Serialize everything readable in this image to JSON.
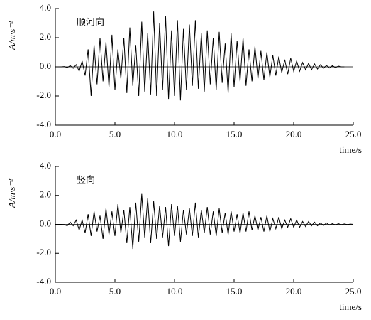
{
  "chart_data": [
    {
      "type": "line",
      "annotation": "顺河向",
      "y_label": "A/m·s⁻²",
      "x_label": "time/s",
      "color": "#000000",
      "xlim": [
        0,
        25
      ],
      "ylim": [
        -4,
        4
      ],
      "xticks": [
        {
          "value": 0,
          "label": "0.0"
        },
        {
          "value": 5,
          "label": "5.0"
        },
        {
          "value": 10,
          "label": "10.0"
        },
        {
          "value": 15,
          "label": "15.0"
        },
        {
          "value": 20,
          "label": "20.0"
        },
        {
          "value": 25,
          "label": "25.0"
        }
      ],
      "yticks": [
        {
          "value": 4,
          "label": "4.0"
        },
        {
          "value": 2,
          "label": "2.0"
        },
        {
          "value": 0,
          "label": "0.0"
        },
        {
          "value": -2,
          "label": "-2.0"
        },
        {
          "value": -4,
          "label": "-4.0"
        }
      ],
      "x": [
        0,
        0.25,
        0.5,
        0.75,
        1,
        1.25,
        1.5,
        1.75,
        2,
        2.25,
        2.5,
        2.75,
        3,
        3.25,
        3.5,
        3.75,
        4,
        4.25,
        4.5,
        4.75,
        5,
        5.25,
        5.5,
        5.75,
        6,
        6.25,
        6.5,
        6.75,
        7,
        7.25,
        7.5,
        7.75,
        8,
        8.25,
        8.5,
        8.75,
        9,
        9.25,
        9.5,
        9.75,
        10,
        10.25,
        10.5,
        10.75,
        11,
        11.25,
        11.5,
        11.75,
        12,
        12.25,
        12.5,
        12.75,
        13,
        13.25,
        13.5,
        13.75,
        14,
        14.25,
        14.5,
        14.75,
        15,
        15.25,
        15.5,
        15.75,
        16,
        16.25,
        16.5,
        16.75,
        17,
        17.25,
        17.5,
        17.75,
        18,
        18.25,
        18.5,
        18.75,
        19,
        19.25,
        19.5,
        19.75,
        20,
        20.25,
        20.5,
        20.75,
        21,
        21.25,
        21.5,
        21.75,
        22,
        22.25,
        22.5,
        22.75,
        23,
        23.25,
        23.5,
        23.75,
        24,
        24.25
      ],
      "values": [
        0,
        0,
        0,
        0.02,
        -0.05,
        0.08,
        -0.1,
        0.15,
        -0.3,
        0.4,
        -0.6,
        1.2,
        -2.0,
        1.5,
        -1.2,
        2.0,
        -1.0,
        1.7,
        -1.4,
        2.2,
        -1.6,
        1.2,
        -0.8,
        2.0,
        -1.8,
        2.7,
        -1.3,
        1.5,
        -2.0,
        3.1,
        -1.7,
        2.3,
        -1.9,
        3.8,
        -2.0,
        3.0,
        -1.6,
        3.5,
        -2.2,
        2.5,
        -2.0,
        3.2,
        -2.3,
        2.6,
        -1.6,
        2.9,
        -1.3,
        3.2,
        -1.5,
        2.3,
        -1.7,
        2.5,
        -1.2,
        2.0,
        -1.6,
        2.4,
        -1.1,
        1.6,
        -1.8,
        2.3,
        -1.4,
        1.8,
        -1.0,
        2.0,
        -1.3,
        1.2,
        -1.0,
        1.4,
        -0.8,
        1.1,
        -0.9,
        1.0,
        -0.7,
        0.8,
        -0.6,
        0.7,
        -0.4,
        0.5,
        -0.5,
        0.6,
        -0.3,
        0.4,
        -0.3,
        0.3,
        -0.2,
        0.25,
        -0.2,
        0.2,
        -0.15,
        0.15,
        -0.1,
        0.1,
        -0.08,
        0.08,
        -0.05,
        0.05,
        0,
        0
      ]
    },
    {
      "type": "line",
      "annotation": "竖向",
      "y_label": "A/m·s⁻²",
      "x_label": "time/s",
      "color": "#000000",
      "xlim": [
        0,
        25
      ],
      "ylim": [
        -4,
        4
      ],
      "xticks": [
        {
          "value": 0,
          "label": "0.0"
        },
        {
          "value": 5,
          "label": "5.0"
        },
        {
          "value": 10,
          "label": "10.0"
        },
        {
          "value": 15,
          "label": "15.0"
        },
        {
          "value": 20,
          "label": "20.0"
        },
        {
          "value": 25,
          "label": "25.0"
        }
      ],
      "yticks": [
        {
          "value": 4,
          "label": "4.0"
        },
        {
          "value": 2,
          "label": "2.0"
        },
        {
          "value": 0,
          "label": "0.0"
        },
        {
          "value": -2,
          "label": "-2.0"
        },
        {
          "value": -4,
          "label": "-4.0"
        }
      ],
      "x": [
        0,
        0.25,
        0.5,
        0.75,
        1,
        1.25,
        1.5,
        1.75,
        2,
        2.25,
        2.5,
        2.75,
        3,
        3.25,
        3.5,
        3.75,
        4,
        4.25,
        4.5,
        4.75,
        5,
        5.25,
        5.5,
        5.75,
        6,
        6.25,
        6.5,
        6.75,
        7,
        7.25,
        7.5,
        7.75,
        8,
        8.25,
        8.5,
        8.75,
        9,
        9.25,
        9.5,
        9.75,
        10,
        10.25,
        10.5,
        10.75,
        11,
        11.25,
        11.5,
        11.75,
        12,
        12.25,
        12.5,
        12.75,
        13,
        13.25,
        13.5,
        13.75,
        14,
        14.25,
        14.5,
        14.75,
        15,
        15.25,
        15.5,
        15.75,
        16,
        16.25,
        16.5,
        16.75,
        17,
        17.25,
        17.5,
        17.75,
        18,
        18.25,
        18.5,
        18.75,
        19,
        19.25,
        19.5,
        19.75,
        20,
        20.25,
        20.5,
        20.75,
        21,
        21.25,
        21.5,
        21.75,
        22,
        22.25,
        22.5,
        22.75,
        23,
        23.25,
        23.5,
        23.75,
        24,
        24.25,
        24.5,
        24.75,
        25
      ],
      "values": [
        0,
        0,
        0,
        -0.02,
        -0.1,
        0.15,
        -0.1,
        0.3,
        -0.4,
        0.3,
        -0.6,
        0.7,
        -0.8,
        0.9,
        -0.5,
        0.6,
        -1.0,
        1.1,
        -0.7,
        0.9,
        -0.8,
        1.4,
        -0.6,
        1.0,
        -1.3,
        1.2,
        -1.7,
        1.5,
        -1.2,
        2.1,
        -0.9,
        1.8,
        -1.3,
        1.6,
        -1.0,
        1.3,
        -0.9,
        1.2,
        -1.5,
        1.4,
        -0.8,
        1.3,
        -1.2,
        1.0,
        -0.7,
        1.1,
        -0.8,
        1.5,
        -0.9,
        1.0,
        -0.6,
        1.2,
        -0.7,
        0.9,
        -0.8,
        1.1,
        -0.6,
        0.8,
        -0.7,
        0.9,
        -0.5,
        0.7,
        -0.6,
        0.8,
        -0.5,
        0.9,
        -0.4,
        0.6,
        -0.4,
        0.5,
        -0.5,
        0.6,
        -0.5,
        0.4,
        -0.3,
        0.5,
        -0.3,
        0.3,
        -0.2,
        0.4,
        -0.2,
        0.3,
        -0.2,
        0.2,
        -0.15,
        0.2,
        -0.1,
        0.15,
        -0.1,
        0.1,
        -0.08,
        0.1,
        -0.05,
        0.05,
        -0.05,
        0.05,
        -0.03,
        0.03,
        -0.02,
        0.02,
        0
      ]
    }
  ]
}
